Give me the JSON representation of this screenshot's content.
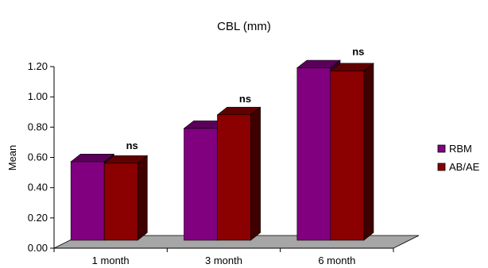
{
  "chart_data": {
    "type": "bar",
    "title": "CBL (mm)",
    "xlabel": "",
    "ylabel": "Mean",
    "categories": [
      "1 month",
      "3 month",
      "6 month"
    ],
    "series": [
      {
        "name": "RBM",
        "values": [
          0.54,
          0.76,
          1.16
        ],
        "color": "#800080"
      },
      {
        "name": "AB/AE",
        "values": [
          0.53,
          0.85,
          1.14
        ],
        "color": "#8b0000"
      }
    ],
    "ylim": [
      0,
      1.2
    ],
    "yticks": [
      "0.00",
      "0.20",
      "0.40",
      "0.60",
      "0.80",
      "1.00",
      "1.20"
    ],
    "annotations": [
      "ns",
      "ns",
      "ns"
    ],
    "legend_position": "right",
    "grid": false,
    "style": "3d",
    "floor_color": "#a6a6a6"
  }
}
